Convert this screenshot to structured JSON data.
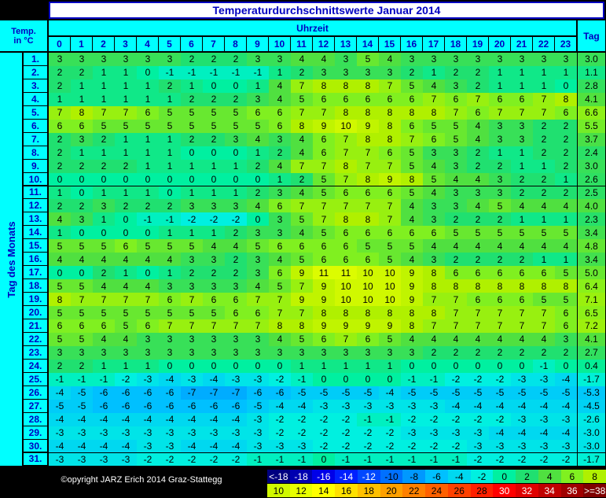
{
  "title": "Temperaturdurchschnittswerte Januar 2014",
  "header": {
    "corner": [
      "Temp.",
      "in °C"
    ],
    "time_label": "Uhrzeit",
    "hours": [
      0,
      1,
      2,
      3,
      4,
      5,
      6,
      7,
      8,
      9,
      10,
      11,
      12,
      13,
      14,
      15,
      16,
      17,
      18,
      19,
      20,
      21,
      22,
      23
    ],
    "total_label": "Tag",
    "row_label": "Tag des Monats"
  },
  "rows": [
    {
      "day": "1.",
      "values": [
        3,
        3,
        3,
        3,
        3,
        3,
        2,
        2,
        2,
        3,
        3,
        4,
        4,
        3,
        5,
        4,
        3,
        3,
        3,
        3,
        3,
        3,
        3,
        3
      ],
      "mean": "3.0"
    },
    {
      "day": "2.",
      "values": [
        2,
        2,
        1,
        1,
        0,
        -1,
        -1,
        -1,
        -1,
        -1,
        1,
        2,
        3,
        3,
        3,
        3,
        2,
        1,
        2,
        2,
        1,
        1,
        1,
        1
      ],
      "mean": "1.1"
    },
    {
      "day": "3.",
      "values": [
        2,
        1,
        1,
        1,
        1,
        2,
        1,
        0,
        0,
        1,
        4,
        7,
        8,
        8,
        8,
        7,
        5,
        4,
        3,
        2,
        1,
        1,
        1,
        0
      ],
      "mean": "2.8"
    },
    {
      "day": "4.",
      "values": [
        1,
        1,
        1,
        1,
        1,
        1,
        2,
        2,
        2,
        3,
        4,
        5,
        6,
        6,
        6,
        6,
        6,
        7,
        6,
        7,
        6,
        6,
        7,
        8
      ],
      "mean": "4.1"
    },
    {
      "day": "5.",
      "values": [
        7,
        8,
        7,
        7,
        6,
        5,
        5,
        5,
        5,
        6,
        6,
        7,
        7,
        8,
        8,
        8,
        8,
        8,
        7,
        6,
        7,
        7,
        7,
        6
      ],
      "mean": "6.6"
    },
    {
      "day": "6.",
      "values": [
        6,
        6,
        5,
        5,
        5,
        5,
        5,
        5,
        5,
        5,
        6,
        8,
        9,
        10,
        9,
        8,
        6,
        5,
        5,
        4,
        3,
        3,
        2,
        2
      ],
      "mean": "5.5"
    },
    {
      "day": "7.",
      "values": [
        2,
        3,
        2,
        1,
        1,
        1,
        2,
        2,
        3,
        4,
        3,
        4,
        6,
        7,
        8,
        8,
        7,
        6,
        5,
        4,
        3,
        3,
        2,
        2
      ],
      "mean": "3.7"
    },
    {
      "day": "8.",
      "values": [
        2,
        1,
        1,
        1,
        1,
        1,
        0,
        0,
        0,
        1,
        2,
        4,
        6,
        7,
        7,
        6,
        5,
        3,
        3,
        2,
        1,
        1,
        2,
        2
      ],
      "mean": "2.4"
    },
    {
      "day": "9.",
      "values": [
        2,
        2,
        2,
        2,
        1,
        1,
        1,
        1,
        1,
        2,
        4,
        7,
        7,
        8,
        7,
        7,
        5,
        4,
        3,
        2,
        2,
        1,
        1,
        2
      ],
      "mean": "3.0"
    },
    {
      "day": "10.",
      "values": [
        0,
        0,
        0,
        0,
        0,
        0,
        0,
        0,
        0,
        0,
        1,
        2,
        5,
        7,
        8,
        9,
        8,
        5,
        4,
        4,
        3,
        2,
        2,
        1
      ],
      "mean": "2.6"
    },
    {
      "day": "11.",
      "values": [
        1,
        0,
        1,
        1,
        1,
        0,
        1,
        1,
        1,
        2,
        3,
        4,
        5,
        6,
        6,
        6,
        5,
        4,
        3,
        3,
        3,
        2,
        2,
        2
      ],
      "mean": "2.5"
    },
    {
      "day": "12.",
      "values": [
        2,
        2,
        3,
        2,
        2,
        2,
        3,
        3,
        3,
        4,
        6,
        7,
        7,
        7,
        7,
        7,
        4,
        3,
        3,
        4,
        5,
        4,
        4,
        4
      ],
      "mean": "4.0"
    },
    {
      "day": "13.",
      "values": [
        4,
        3,
        1,
        0,
        -1,
        -1,
        -2,
        -2,
        -2,
        0,
        3,
        5,
        7,
        8,
        8,
        7,
        4,
        3,
        2,
        2,
        2,
        1,
        1,
        1
      ],
      "mean": "2.3"
    },
    {
      "day": "14.",
      "values": [
        1,
        0,
        0,
        0,
        0,
        1,
        1,
        1,
        2,
        3,
        3,
        4,
        5,
        6,
        6,
        6,
        6,
        6,
        5,
        5,
        5,
        5,
        5,
        5
      ],
      "mean": "3.4"
    },
    {
      "day": "15.",
      "values": [
        5,
        5,
        5,
        6,
        5,
        5,
        5,
        4,
        4,
        5,
        6,
        6,
        6,
        6,
        5,
        5,
        5,
        4,
        4,
        4,
        4,
        4,
        4,
        4
      ],
      "mean": "4.8"
    },
    {
      "day": "16.",
      "values": [
        4,
        4,
        4,
        4,
        4,
        4,
        3,
        3,
        2,
        3,
        4,
        5,
        6,
        6,
        6,
        5,
        4,
        3,
        2,
        2,
        2,
        2,
        1,
        1
      ],
      "mean": "3.4"
    },
    {
      "day": "17.",
      "values": [
        0,
        0,
        2,
        1,
        0,
        1,
        2,
        2,
        2,
        3,
        6,
        9,
        11,
        11,
        10,
        10,
        9,
        8,
        6,
        6,
        6,
        6,
        6,
        5
      ],
      "mean": "5.0"
    },
    {
      "day": "18.",
      "values": [
        5,
        5,
        4,
        4,
        4,
        3,
        3,
        3,
        3,
        4,
        5,
        7,
        9,
        10,
        10,
        10,
        9,
        8,
        8,
        8,
        8,
        8,
        8,
        8
      ],
      "mean": "6.4"
    },
    {
      "day": "19.",
      "values": [
        8,
        7,
        7,
        7,
        7,
        6,
        7,
        6,
        6,
        7,
        7,
        9,
        9,
        10,
        10,
        10,
        9,
        7,
        7,
        6,
        6,
        6,
        5,
        5
      ],
      "mean": "7.1"
    },
    {
      "day": "20.",
      "values": [
        5,
        5,
        5,
        5,
        5,
        5,
        5,
        5,
        6,
        6,
        7,
        7,
        8,
        8,
        8,
        8,
        8,
        8,
        7,
        7,
        7,
        7,
        7,
        6
      ],
      "mean": "6.5"
    },
    {
      "day": "21.",
      "values": [
        6,
        6,
        6,
        5,
        6,
        7,
        7,
        7,
        7,
        7,
        8,
        8,
        9,
        9,
        9,
        9,
        8,
        7,
        7,
        7,
        7,
        7,
        7,
        6
      ],
      "mean": "7.2"
    },
    {
      "day": "22.",
      "values": [
        5,
        5,
        4,
        4,
        3,
        3,
        3,
        3,
        3,
        3,
        4,
        5,
        6,
        7,
        6,
        5,
        4,
        4,
        4,
        4,
        4,
        4,
        4,
        3
      ],
      "mean": "4.1"
    },
    {
      "day": "23.",
      "values": [
        3,
        3,
        3,
        3,
        3,
        3,
        3,
        3,
        3,
        3,
        3,
        3,
        3,
        3,
        3,
        3,
        3,
        2,
        2,
        2,
        2,
        2,
        2,
        2
      ],
      "mean": "2.7"
    },
    {
      "day": "24.",
      "values": [
        2,
        2,
        1,
        1,
        1,
        0,
        0,
        0,
        0,
        0,
        0,
        1,
        1,
        1,
        1,
        1,
        0,
        0,
        0,
        0,
        0,
        0,
        -1,
        0
      ],
      "mean": "0.4"
    },
    {
      "day": "25.",
      "values": [
        -1,
        -1,
        -1,
        -2,
        -3,
        -4,
        -3,
        -4,
        -3,
        -3,
        -2,
        -1,
        0,
        0,
        0,
        0,
        -1,
        -1,
        -2,
        -2,
        -2,
        -3,
        -3,
        -4
      ],
      "mean": "-1.7"
    },
    {
      "day": "26.",
      "values": [
        -4,
        -5,
        -6,
        -6,
        -6,
        -6,
        -7,
        -7,
        -7,
        -6,
        -6,
        -5,
        -5,
        -5,
        -5,
        -4,
        -5,
        -5,
        -5,
        -5,
        -5,
        -5,
        -5,
        -5
      ],
      "mean": "-5.3"
    },
    {
      "day": "27.",
      "values": [
        -5,
        -5,
        -6,
        -6,
        -6,
        -6,
        -6,
        -6,
        -6,
        -5,
        -4,
        -4,
        -3,
        -3,
        -3,
        -3,
        -3,
        -3,
        -4,
        -4,
        -4,
        -4,
        -4,
        -4
      ],
      "mean": "-4.5"
    },
    {
      "day": "28.",
      "values": [
        -4,
        -4,
        -4,
        -4,
        -4,
        -4,
        -4,
        -4,
        -4,
        -3,
        -2,
        -2,
        -2,
        -2,
        -1,
        -1,
        -2,
        -2,
        -2,
        -2,
        -2,
        -3,
        -3,
        -3
      ],
      "mean": "-2.6"
    },
    {
      "day": "29.",
      "values": [
        -3,
        -3,
        -3,
        -3,
        -3,
        -3,
        -3,
        -3,
        -3,
        -3,
        -2,
        -2,
        -2,
        -2,
        -2,
        -2,
        -3,
        -3,
        -3,
        -3,
        -4,
        -4,
        -4,
        -4
      ],
      "mean": "-3.0"
    },
    {
      "day": "30.",
      "values": [
        -4,
        -4,
        -4,
        -4,
        -3,
        -3,
        -4,
        -4,
        -4,
        -3,
        -3,
        -3,
        -2,
        -2,
        -2,
        -2,
        -2,
        -2,
        -2,
        -3,
        -3,
        -3,
        -3,
        -3
      ],
      "mean": "-3.0"
    },
    {
      "day": "31.",
      "values": [
        -3,
        -3,
        -3,
        -3,
        -2,
        -2,
        -2,
        -2,
        -2,
        -1,
        -1,
        -1,
        0,
        -1,
        -1,
        -1,
        -1,
        -1,
        -1,
        -2,
        -2,
        -2,
        -2,
        -2
      ],
      "mean": "-1.7"
    }
  ],
  "footer": "©opyright JARZ Erich 2014 Graz-Stattegg",
  "legend": [
    {
      "label": "<-18",
      "color": "#000080"
    },
    {
      "label": -18,
      "color": "#0000b0"
    },
    {
      "label": -16,
      "color": "#0000e8"
    },
    {
      "label": -14,
      "color": "#0020ff"
    },
    {
      "label": -12,
      "color": "#0048ff"
    },
    {
      "label": -10,
      "color": "#0070ff"
    },
    {
      "label": -8,
      "color": "#0098ff"
    },
    {
      "label": -6,
      "color": "#00c0ff"
    },
    {
      "label": -4,
      "color": "#00d8f0"
    },
    {
      "label": -2,
      "color": "#00f0e0"
    },
    {
      "label": 0,
      "color": "#00f0a0"
    },
    {
      "label": 2,
      "color": "#20e070"
    },
    {
      "label": 4,
      "color": "#50e040"
    },
    {
      "label": 6,
      "color": "#80f020"
    },
    {
      "label": 8,
      "color": "#b0f000"
    },
    {
      "label": 10,
      "color": "#d0f800"
    },
    {
      "label": 12,
      "color": "#e8ff00"
    },
    {
      "label": 14,
      "color": "#ffff00"
    },
    {
      "label": 16,
      "color": "#ffe000"
    },
    {
      "label": 18,
      "color": "#ffc000"
    },
    {
      "label": 20,
      "color": "#ffa000"
    },
    {
      "label": 22,
      "color": "#ff8000"
    },
    {
      "label": 24,
      "color": "#ff6000"
    },
    {
      "label": 26,
      "color": "#ff4000"
    },
    {
      "label": 28,
      "color": "#ff2000"
    },
    {
      "label": 30,
      "color": "#ff0000"
    },
    {
      "label": 32,
      "color": "#e00000"
    },
    {
      "label": 34,
      "color": "#c00000"
    },
    {
      "label": 36,
      "color": "#a00000"
    },
    {
      "label": ">=38",
      "color": "#800000"
    }
  ]
}
